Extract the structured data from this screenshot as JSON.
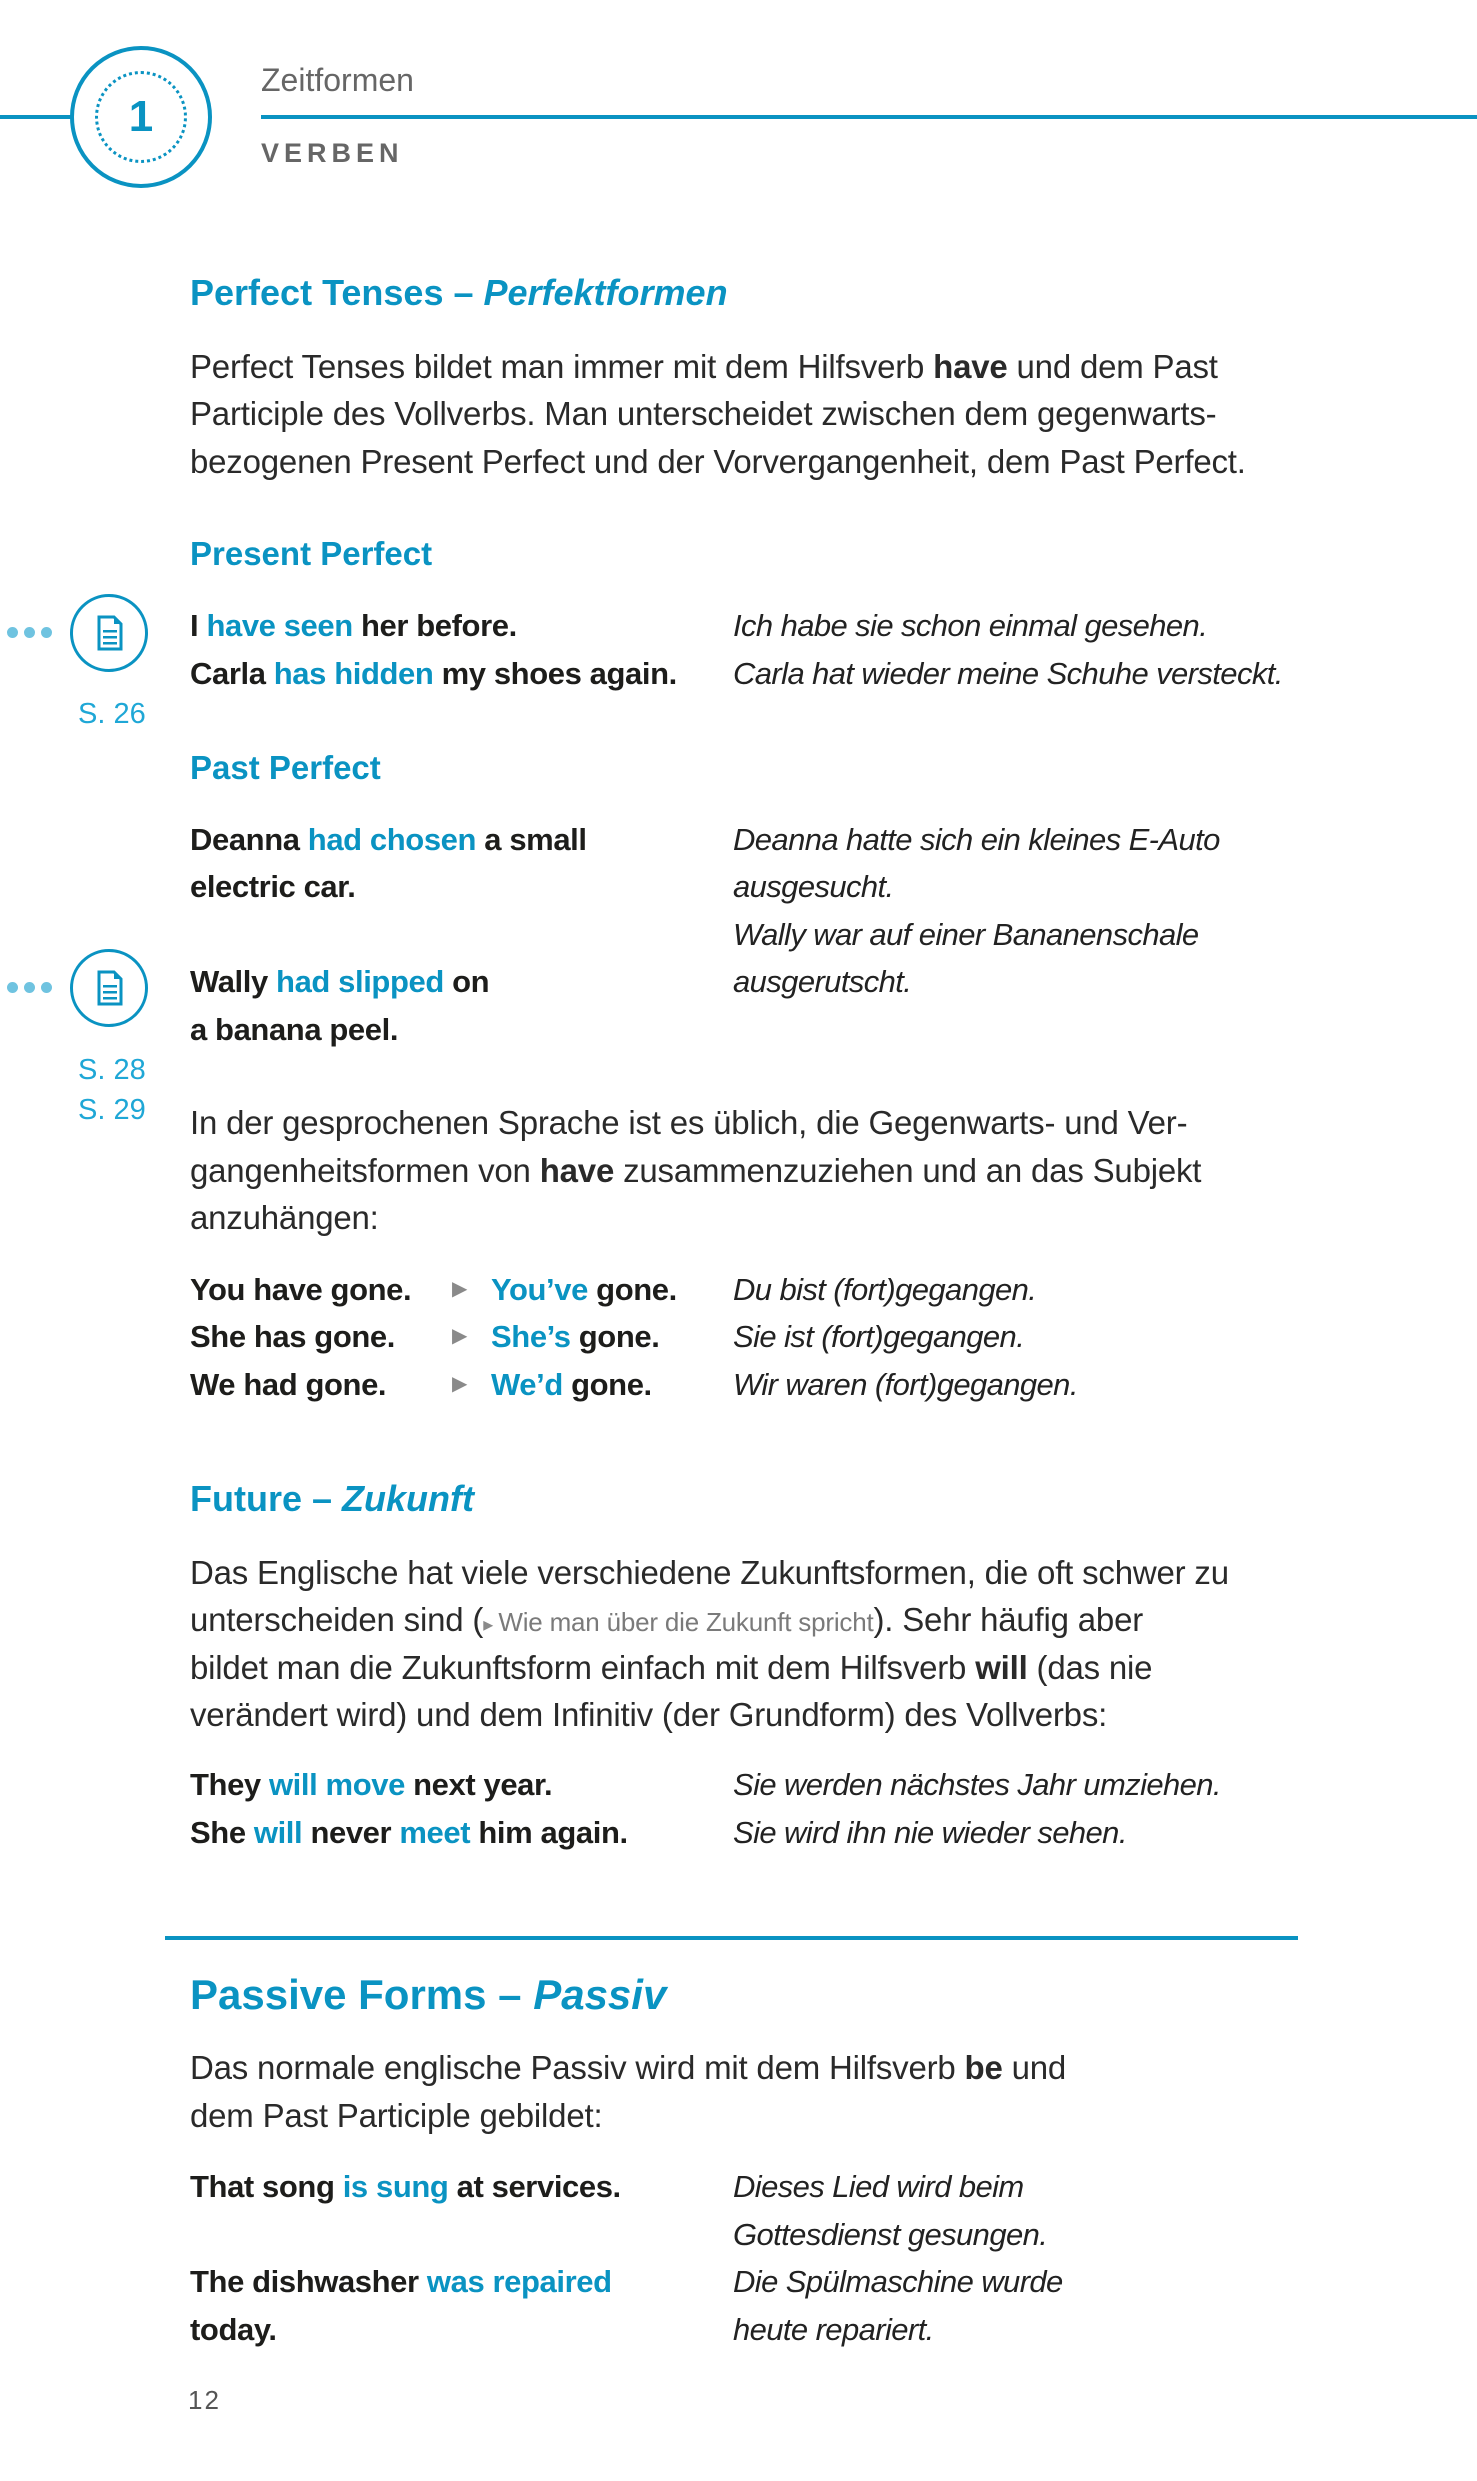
{
  "header": {
    "chapter_number": "1",
    "title": "Zeitformen",
    "section": "VERBEN"
  },
  "colors": {
    "accent": "#0a93c2",
    "text": "#1d1d1b"
  },
  "perfect": {
    "heading": [
      {
        "t": "Perfect Tenses – "
      },
      {
        "t": "Perfektformen",
        "s": "i"
      }
    ],
    "intro": [
      [
        {
          "t": "Perfect Tenses bildet man immer mit dem Hilfsverb "
        },
        {
          "t": "have",
          "s": "b"
        },
        {
          "t": " und dem Past"
        }
      ],
      [
        {
          "t": "Participle des Vollverbs. Man unterscheidet zwischen dem gegenwarts-"
        }
      ],
      [
        {
          "t": "bezogenen Present Perfect und der Vorvergangenheit, dem Past Perfect."
        }
      ]
    ],
    "present_heading": "Present Perfect",
    "present_examples": [
      {
        "en": [
          {
            "t": "I "
          },
          {
            "t": "have seen",
            "s": "hl"
          },
          {
            "t": " her before."
          }
        ],
        "de": "Ich habe sie schon einmal gesehen."
      },
      {
        "en": [
          {
            "t": "Carla "
          },
          {
            "t": "has hidden",
            "s": "hl"
          },
          {
            "t": " my shoes again."
          }
        ],
        "de": "Carla hat wieder meine Schuhe versteckt."
      }
    ],
    "present_ref": {
      "icon": "document-icon",
      "pages": [
        "S. 26"
      ]
    },
    "past_heading": "Past Perfect",
    "past_en": [
      [
        {
          "t": "Deanna "
        },
        {
          "t": "had chosen",
          "s": "hl"
        },
        {
          "t": " a small"
        }
      ],
      [
        {
          "t": "electric car."
        }
      ],
      [
        {
          "t": "Wally "
        },
        {
          "t": "had slipped",
          "s": "hl"
        },
        {
          "t": " on"
        }
      ],
      [
        {
          "t": "a banana peel."
        }
      ]
    ],
    "past_de": [
      "Deanna hatte sich ein kleines E-Auto",
      "ausgesucht.",
      "Wally war auf einer Bananenschale",
      "ausgerutscht."
    ],
    "past_ref": {
      "icon": "document-icon",
      "pages": [
        "S. 28",
        "S. 29"
      ]
    },
    "contraction_intro": [
      [
        {
          "t": "In der gesprochenen Sprache ist es üblich, die Gegenwarts- und Ver-"
        }
      ],
      [
        {
          "t": "gangenheitsformen von "
        },
        {
          "t": "have",
          "s": "b"
        },
        {
          "t": " zusammenzuziehen und an das Subjekt"
        }
      ],
      [
        {
          "t": "anzuhängen:"
        }
      ]
    ],
    "contractions": [
      {
        "full": "You have gone.",
        "short": [
          {
            "t": "You’ve",
            "s": "hl"
          },
          {
            "t": " gone."
          }
        ],
        "de": "Du bist (fort)gegangen."
      },
      {
        "full": "She has gone.",
        "short": [
          {
            "t": "She’s",
            "s": "hl"
          },
          {
            "t": " gone."
          }
        ],
        "de": "Sie ist (fort)gegangen."
      },
      {
        "full": "We had gone.",
        "short": [
          {
            "t": "We’d",
            "s": "hl"
          },
          {
            "t": " gone."
          }
        ],
        "de": "Wir waren (fort)gegangen."
      }
    ]
  },
  "future": {
    "heading": [
      {
        "t": "Future – "
      },
      {
        "t": "Zukunft",
        "s": "i"
      }
    ],
    "intro": [
      [
        {
          "t": "Das Englische hat viele verschiedene Zukunftsformen, die oft schwer zu"
        }
      ],
      [
        {
          "t": "unterscheiden sind ("
        },
        {
          "t": "▸ ",
          "s": "arrow"
        },
        {
          "t": "Wie man über die Zukunft spricht",
          "s": "ref"
        },
        {
          "t": "). Sehr häufig aber"
        }
      ],
      [
        {
          "t": "bildet man die Zukunftsform einfach mit dem Hilfsverb "
        },
        {
          "t": "will",
          "s": "b"
        },
        {
          "t": " (das nie"
        }
      ],
      [
        {
          "t": "verändert wird) und dem Infinitiv (der Grundform) des Vollverbs:"
        }
      ]
    ],
    "examples": [
      {
        "en": [
          {
            "t": "They "
          },
          {
            "t": "will move",
            "s": "hl"
          },
          {
            "t": " next year."
          }
        ],
        "de": "Sie werden nächstes Jahr umziehen."
      },
      {
        "en": [
          {
            "t": "She "
          },
          {
            "t": "will",
            "s": "hl"
          },
          {
            "t": " never "
          },
          {
            "t": "meet",
            "s": "hl"
          },
          {
            "t": " him again."
          }
        ],
        "de": "Sie wird ihn nie wieder sehen."
      }
    ]
  },
  "passive": {
    "heading": [
      {
        "t": "Passive Forms – "
      },
      {
        "t": "Passiv",
        "s": "i"
      }
    ],
    "intro": [
      [
        {
          "t": "Das normale englische Passiv wird mit dem Hilfsverb "
        },
        {
          "t": "be",
          "s": "b"
        },
        {
          "t": " und"
        }
      ],
      [
        {
          "t": "dem Past Participle gebildet:"
        }
      ]
    ],
    "en": [
      [
        {
          "t": "That song "
        },
        {
          "t": "is sung",
          "s": "hl"
        },
        {
          "t": " at services."
        }
      ],
      [
        {
          "t": "The dishwasher "
        },
        {
          "t": "was repaired",
          "s": "hl"
        }
      ],
      [
        {
          "t": "today."
        }
      ]
    ],
    "de": [
      "Dieses Lied wird beim",
      "Gottesdienst gesungen.",
      "Die Spülmaschine wurde",
      "heute repariert."
    ]
  },
  "footer": {
    "page_number": "12"
  }
}
